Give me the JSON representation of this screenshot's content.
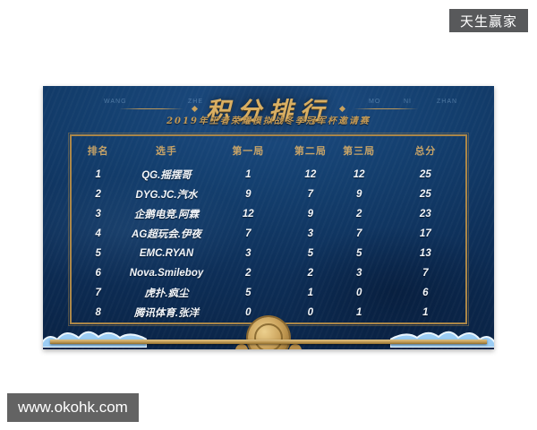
{
  "watermarks": {
    "top_right": "天生赢家",
    "bottom_left": "www.okohk.com"
  },
  "banner": {
    "title": "积分排行",
    "subtitle": "2019年王者荣耀模拟战冬季冠军杯邀请赛",
    "marks": [
      "WANG",
      "ZHE",
      "MO",
      "NI",
      "ZHAN"
    ]
  },
  "chart_data": {
    "type": "table",
    "title": "积分排行",
    "subtitle": "2019年王者荣耀模拟战冬季冠军杯邀请赛",
    "columns": [
      "排名",
      "选手",
      "第一局",
      "第二局",
      "第三局",
      "总分"
    ],
    "rows": [
      [
        "1",
        "QG.摇摆哥",
        "1",
        "12",
        "12",
        "25"
      ],
      [
        "2",
        "DYG.JC.汽水",
        "9",
        "7",
        "9",
        "25"
      ],
      [
        "3",
        "企鹅电竞.阿霖",
        "12",
        "9",
        "2",
        "23"
      ],
      [
        "4",
        "AG超玩会.伊夜",
        "7",
        "3",
        "7",
        "17"
      ],
      [
        "5",
        "EMC.RYAN",
        "3",
        "5",
        "5",
        "13"
      ],
      [
        "6",
        "Nova.Smileboy",
        "2",
        "2",
        "3",
        "7"
      ],
      [
        "7",
        "虎扑.疯尘",
        "5",
        "1",
        "0",
        "6"
      ],
      [
        "8",
        "腾讯体育.张洋",
        "0",
        "0",
        "1",
        "1"
      ]
    ]
  },
  "colors": {
    "banner_navy": "#0d2e57",
    "accent_gold": "#c9a25e",
    "header_text": "#c8a468",
    "badge_gray": "#58595b",
    "wave_blue": "#9ccdf4"
  }
}
